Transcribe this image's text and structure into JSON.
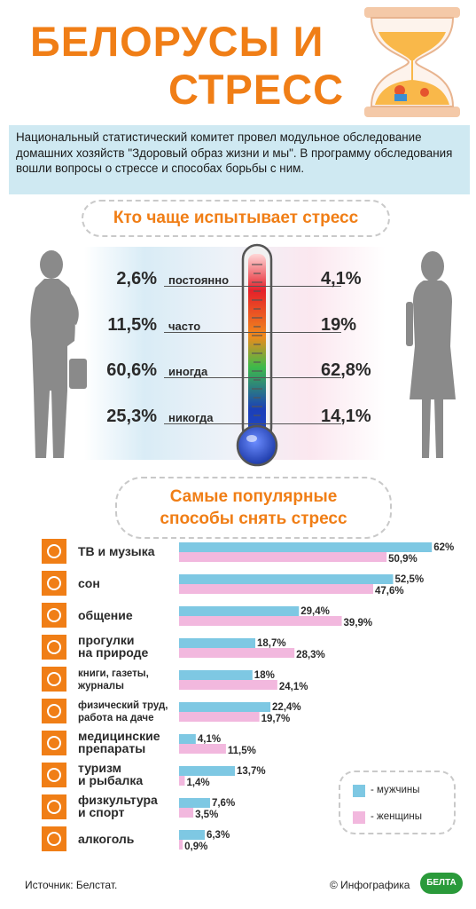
{
  "title": {
    "line1": "БЕЛОРУСЫ И",
    "line2": "СТРЕСС"
  },
  "intro": "Национальный статистический комитет провел модульное обследование домашних хозяйств \"Здоровый образ жизни и мы\". В программу обследования вошли вопросы о стрессе и способах борьбы с ним.",
  "section1_title": "Кто чаще испытывает стресс",
  "stress": [
    {
      "label": "постоянно",
      "men": "2,6%",
      "women": "4,1%"
    },
    {
      "label": "часто",
      "men": "11,5%",
      "women": "19%"
    },
    {
      "label": "иногда",
      "men": "60,6%",
      "women": "62,8%"
    },
    {
      "label": "никогда",
      "men": "25,3%",
      "women": "14,1%"
    }
  ],
  "section2_title": {
    "line1": "Самые популярные",
    "line2": "способы снять стресс"
  },
  "chart_data": {
    "type": "bar",
    "orientation": "horizontal",
    "categories": [
      [
        "ТВ и музыка"
      ],
      [
        "сон"
      ],
      [
        "общение"
      ],
      [
        "прогулки",
        "на природе"
      ],
      [
        "книги, газеты,",
        "журналы"
      ],
      [
        "физический труд,",
        "работа на даче"
      ],
      [
        "медицинские",
        "препараты"
      ],
      [
        "туризм",
        "и рыбалка"
      ],
      [
        "физкультура",
        "и спорт"
      ],
      [
        "алкоголь"
      ]
    ],
    "value_labels": {
      "men": [
        "62%",
        "52,5%",
        "29,4%",
        "18,7%",
        "18%",
        "22,4%",
        "4,1%",
        "13,7%",
        "7,6%",
        "6,3%"
      ],
      "women": [
        "50,9%",
        "47,6%",
        "39,9%",
        "28,3%",
        "24,1%",
        "19,7%",
        "11,5%",
        "1,4%",
        "3,5%",
        "0,9%"
      ]
    },
    "series": [
      {
        "name": "- мужчины",
        "color": "#7ec8e3",
        "values": [
          62,
          52.5,
          29.4,
          18.7,
          18,
          22.4,
          4.1,
          13.7,
          7.6,
          6.3
        ]
      },
      {
        "name": "- женщины",
        "color": "#f2b8de",
        "values": [
          50.9,
          47.6,
          39.9,
          28.3,
          24.1,
          19.7,
          11.5,
          1.4,
          3.5,
          0.9
        ]
      }
    ],
    "icons": [
      "tv-icon",
      "moon-stars-icon",
      "speech-bubbles-icon",
      "trees-icon",
      "books-icon",
      "plant-icon",
      "pills-icon",
      "fish-icon",
      "ball-icon",
      "bottle-glass-icon"
    ],
    "legend_position": "bottom-right"
  },
  "colors": {
    "accent": "#f07e16",
    "men": "#7ec8e3",
    "women": "#f2b8de",
    "intro_bg": "#cfe9f2"
  },
  "footer": {
    "source": "Источник: Белстат.",
    "copyright": "© Инфографика",
    "logo": "БЕЛТА"
  }
}
